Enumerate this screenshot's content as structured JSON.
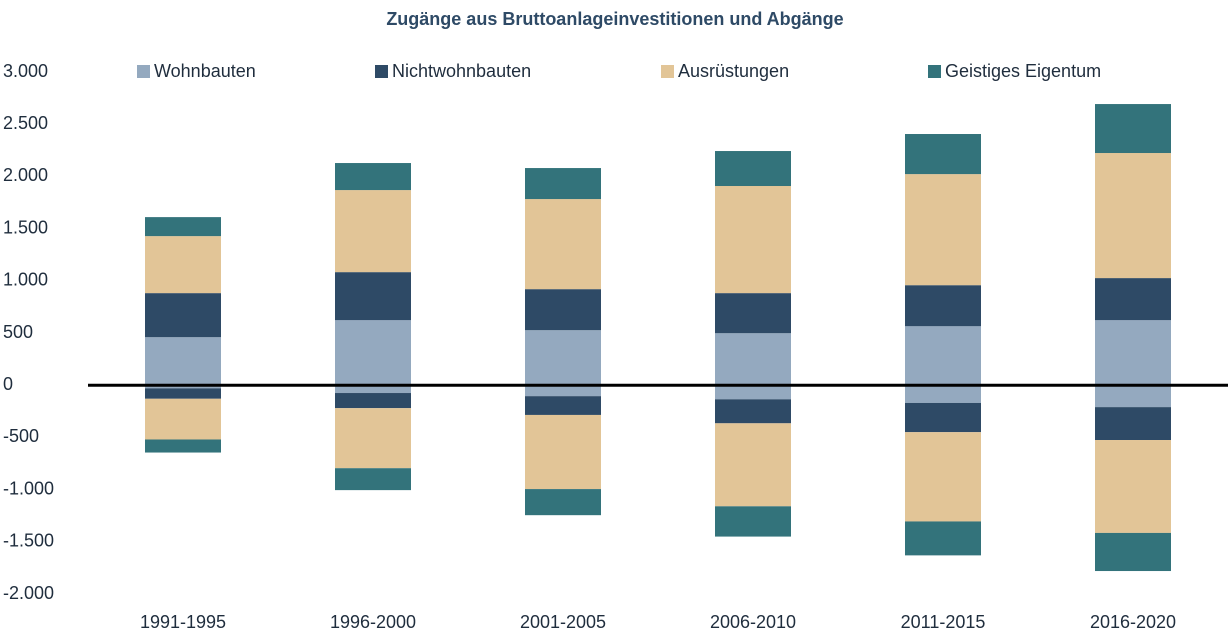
{
  "chart_data": {
    "type": "bar",
    "stacked": true,
    "title": "Zugänge aus Bruttoanlageinvestitionen und Abgänge",
    "categories": [
      "1991-1995",
      "1996-2000",
      "2001-2005",
      "2006-2010",
      "2011-2015",
      "2016-2020"
    ],
    "series": [
      {
        "name": "Wohnbauten",
        "color": "#94a9bf",
        "values": [
          460,
          623,
          527,
          498,
          565,
          623
        ],
        "negative_values": [
          -30,
          -75,
          -105,
          -135,
          -170,
          -210
        ]
      },
      {
        "name": "Nichtwohnbauten",
        "color": "#2e4a66",
        "values": [
          422,
          460,
          393,
          384,
          393,
          403
        ],
        "negative_values": [
          -100,
          -145,
          -180,
          -230,
          -280,
          -315
        ]
      },
      {
        "name": "Ausrüstungen",
        "color": "#e2c597",
        "values": [
          546,
          786,
          863,
          1026,
          1064,
          1198
        ],
        "negative_values": [
          -390,
          -575,
          -710,
          -795,
          -855,
          -890
        ]
      },
      {
        "name": "Geistiges Eigentum",
        "color": "#33737b",
        "values": [
          182,
          259,
          297,
          335,
          384,
          469
        ],
        "negative_values": [
          -125,
          -210,
          -250,
          -290,
          -325,
          -365
        ]
      }
    ],
    "ylim": [
      -2000,
      3000
    ],
    "yticks": [
      {
        "value": -2000,
        "label": "-2.000"
      },
      {
        "value": -1500,
        "label": "-1.500"
      },
      {
        "value": -1000,
        "label": "-1.000"
      },
      -500,
      0,
      500,
      {
        "value": 1000,
        "label": "1.000"
      },
      {
        "value": 1500,
        "label": "1.500"
      },
      {
        "value": 2000,
        "label": "2.000"
      },
      {
        "value": 2500,
        "label": "2.500"
      },
      {
        "value": 3000,
        "label": "3.000"
      }
    ],
    "grid": false,
    "legend": "top"
  }
}
